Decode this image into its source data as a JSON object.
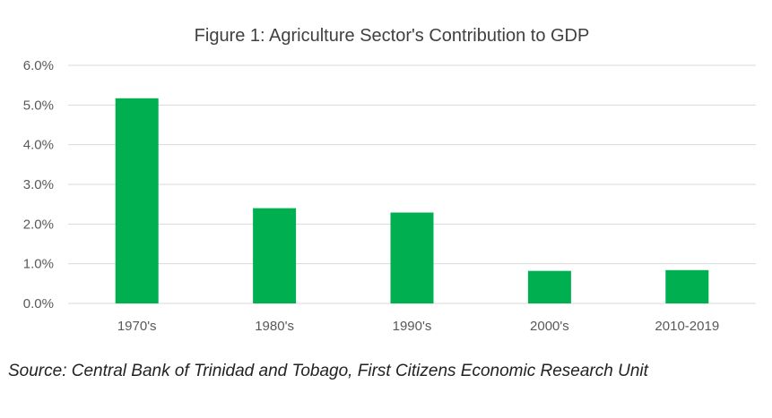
{
  "chart_data": {
    "type": "bar",
    "title": "Figure 1: Agriculture Sector's Contribution to GDP",
    "xlabel": "",
    "ylabel": "",
    "categories": [
      "1970's",
      "1980's",
      "1990's",
      "2000's",
      "2010-2019"
    ],
    "values": [
      5.17,
      2.4,
      2.29,
      0.82,
      0.84
    ],
    "value_unit": "%",
    "ylim": [
      0,
      6
    ],
    "yticks": [
      0,
      1,
      2,
      3,
      4,
      5,
      6
    ],
    "ytick_labels": [
      "0.0%",
      "1.0%",
      "2.0%",
      "3.0%",
      "4.0%",
      "5.0%",
      "6.0%"
    ],
    "grid": true,
    "legend": "none",
    "bar_color": "#00b050",
    "grid_color": "#d9d9d9"
  },
  "source_note": "Source: Central Bank of Trinidad and Tobago, First Citizens Economic Research Unit"
}
